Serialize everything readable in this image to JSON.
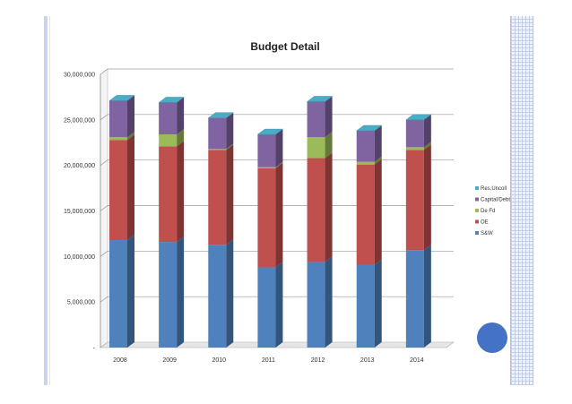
{
  "chart_data": {
    "type": "bar",
    "stacked": true,
    "three_d": true,
    "title": "Budget Detail",
    "xlabel": "",
    "ylabel": "",
    "categories": [
      "2008",
      "2009",
      "2010",
      "2011",
      "2012",
      "2013",
      "2014"
    ],
    "ylim": [
      0,
      30000000
    ],
    "yticks": [
      0,
      5000000,
      10000000,
      15000000,
      20000000,
      25000000,
      30000000
    ],
    "ytick_labels": [
      "-",
      "5,000,000",
      "10,000,000",
      "15,000,000",
      "20,000,000",
      "25,000,000",
      "30,000,000"
    ],
    "grid": true,
    "legend_position": "right",
    "series": [
      {
        "name": "S&W",
        "color": "#4f81bd",
        "values": [
          11800000,
          11600000,
          11300000,
          8800000,
          9400000,
          9100000,
          10700000
        ]
      },
      {
        "name": "OE",
        "color": "#c0504d",
        "values": [
          11000000,
          10500000,
          10400000,
          10900000,
          11400000,
          11000000,
          11000000
        ]
      },
      {
        "name": "De Fd",
        "color": "#9bbb59",
        "values": [
          300000,
          1300000,
          100000,
          100000,
          2300000,
          300000,
          300000
        ]
      },
      {
        "name": "Capital/Debt",
        "color": "#8064a2",
        "values": [
          4000000,
          3500000,
          3400000,
          3600000,
          3900000,
          3400000,
          3000000
        ]
      },
      {
        "name": "Res.Uncoll",
        "color": "#4bacc6",
        "values": [
          0,
          0,
          0,
          0,
          0,
          0,
          0
        ]
      }
    ]
  }
}
